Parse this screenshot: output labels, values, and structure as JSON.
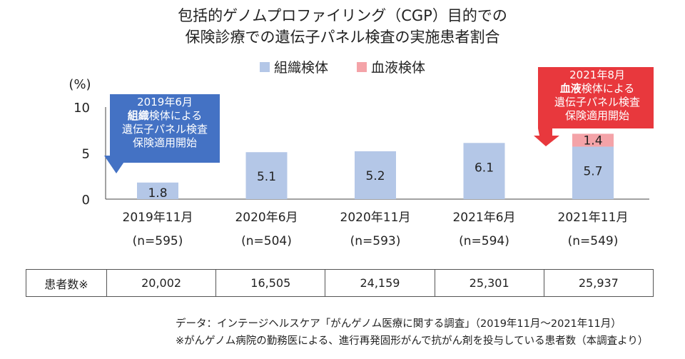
{
  "title": {
    "line1": "包括的ゲノムプロファイリング（CGP）目的での",
    "line2": "保険診療での遺伝子パネル検査の実施患者割合"
  },
  "colors": {
    "tissue": "#b4c7e7",
    "blood": "#f4a3a8",
    "blue_callout": "#4472c4",
    "red_callout": "#e8383d"
  },
  "chart_data": {
    "type": "bar",
    "stacked": true,
    "categories": [
      "2019年11月",
      "2020年6月",
      "2020年11月",
      "2021年6月",
      "2021年11月"
    ],
    "category_sublabels": [
      "(n=595)",
      "(n=504)",
      "(n=593)",
      "(n=594)",
      "(n=549)"
    ],
    "series": [
      {
        "name": "組織検体",
        "values": [
          1.8,
          5.1,
          5.2,
          6.1,
          5.7
        ]
      },
      {
        "name": "血液検体",
        "values": [
          0,
          0,
          0,
          0,
          1.4
        ]
      }
    ],
    "data_labels": [
      {
        "series": 0,
        "index": 0,
        "text": "1.8"
      },
      {
        "series": 0,
        "index": 1,
        "text": "5.1"
      },
      {
        "series": 0,
        "index": 2,
        "text": "5.2"
      },
      {
        "series": 0,
        "index": 3,
        "text": "6.1"
      },
      {
        "series": 0,
        "index": 4,
        "text": "5.7"
      },
      {
        "series": 1,
        "index": 4,
        "text": "1.4"
      }
    ],
    "ylabel": "(%)",
    "yticks": [
      0,
      5,
      10
    ],
    "ylim": [
      0,
      10
    ],
    "legend_position": "top-center",
    "grid": false
  },
  "callouts": {
    "blue": {
      "line1": "2019年6月",
      "bold": "組織",
      "rest": "検体による",
      "line3": "遺伝子パネル検査",
      "line4": "保険適用開始"
    },
    "red": {
      "line1": "2021年8月",
      "bold": "血液",
      "rest": "検体による",
      "line3": "遺伝子パネル検査",
      "line4": "保険適用開始"
    }
  },
  "patients_table": {
    "header": "患者数※",
    "values": [
      "20,002",
      "16,505",
      "24,159",
      "25,301",
      "25,937"
    ]
  },
  "source": {
    "line1": "データ：インテージヘルスケア「がんゲノム医療に関する調査」（2019年11月～2021年11月）",
    "line2": "※がんゲノム病院の勤務医による、進行再発固形がんで抗がん剤を投与している患者数（本調査より）"
  }
}
